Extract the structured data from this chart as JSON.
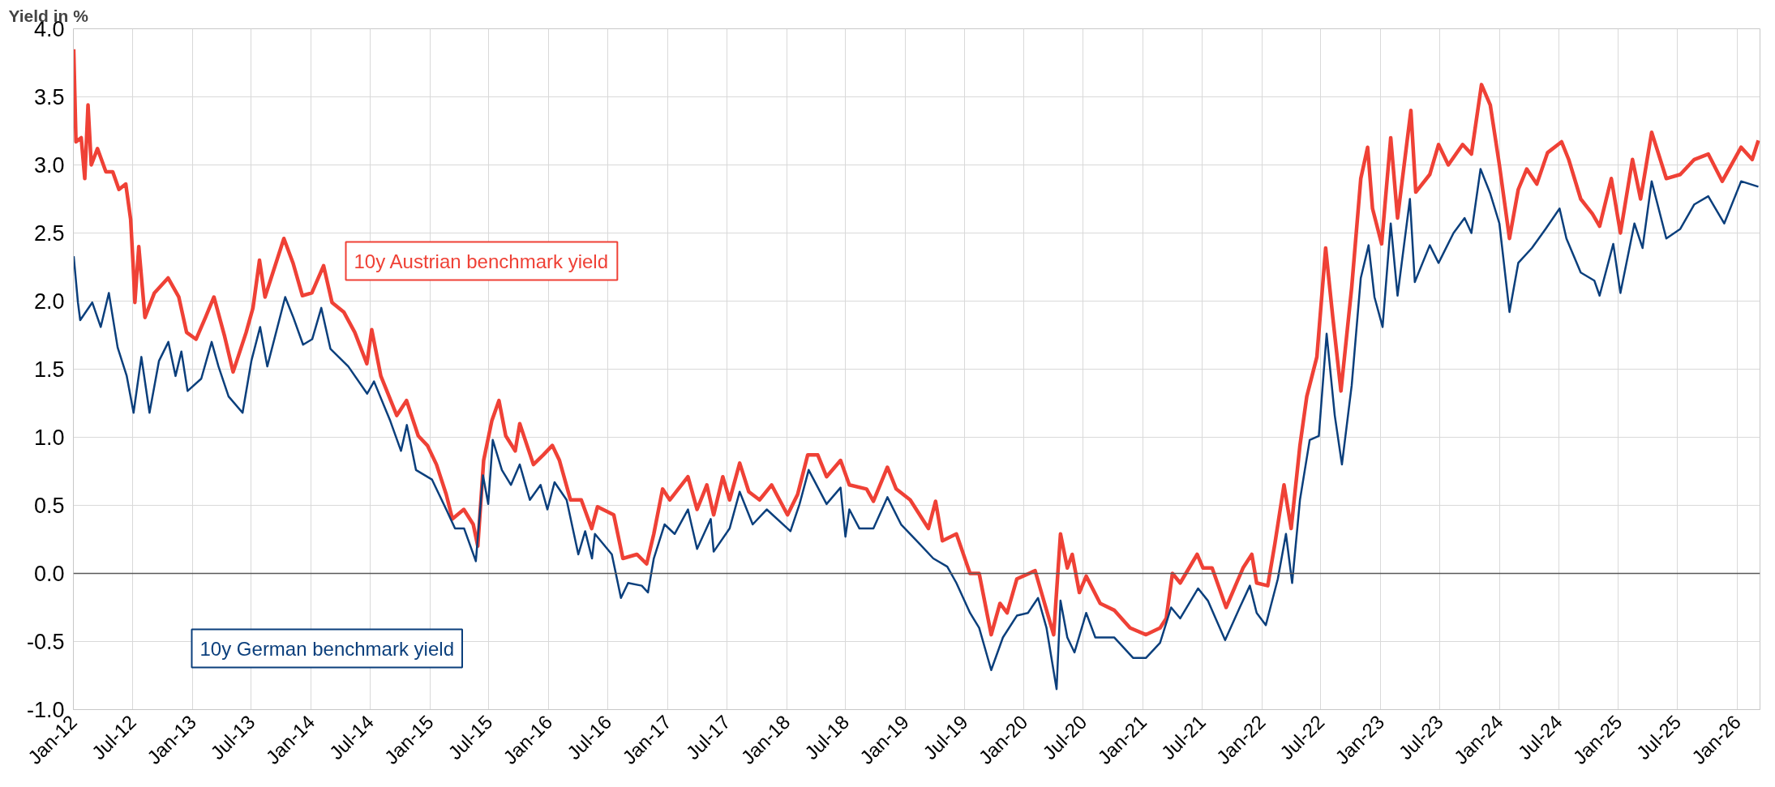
{
  "chart_data": {
    "type": "line",
    "ylabel": "Yield in %",
    "xlim": [
      "2012-01-01",
      "2026-03-12"
    ],
    "ylim": [
      -1.0,
      4.0
    ],
    "yticks": [
      {
        "value": -1,
        "label": "-1.0"
      },
      {
        "value": -0.5,
        "label": "-0.5"
      },
      {
        "value": 0,
        "label": "0.0"
      },
      {
        "value": 0.5,
        "label": "0.5"
      },
      {
        "value": 1,
        "label": "1.0"
      },
      {
        "value": 1.5,
        "label": "1.5"
      },
      {
        "value": 2,
        "label": "2.0"
      },
      {
        "value": 2.5,
        "label": "2.5"
      },
      {
        "value": 3,
        "label": "3.0"
      },
      {
        "value": 3.5,
        "label": "3.5"
      },
      {
        "value": 4,
        "label": "4.0"
      }
    ],
    "xticks": [
      {
        "value": "2012-01",
        "label": "Jan-12"
      },
      {
        "value": "2012-07",
        "label": "Jul-12"
      },
      {
        "value": "2013-01",
        "label": "Jan-13"
      },
      {
        "value": "2013-07",
        "label": "Jul-13"
      },
      {
        "value": "2014-01",
        "label": "Jan-14"
      },
      {
        "value": "2014-07",
        "label": "Jul-14"
      },
      {
        "value": "2015-01",
        "label": "Jan-15"
      },
      {
        "value": "2015-07",
        "label": "Jul-15"
      },
      {
        "value": "2016-01",
        "label": "Jan-16"
      },
      {
        "value": "2016-07",
        "label": "Jul-16"
      },
      {
        "value": "2017-01",
        "label": "Jan-17"
      },
      {
        "value": "2017-07",
        "label": "Jul-17"
      },
      {
        "value": "2018-01",
        "label": "Jan-18"
      },
      {
        "value": "2018-07",
        "label": "Jul-18"
      },
      {
        "value": "2019-01",
        "label": "Jan-19"
      },
      {
        "value": "2019-07",
        "label": "Jul-19"
      },
      {
        "value": "2020-01",
        "label": "Jan-20"
      },
      {
        "value": "2020-07",
        "label": "Jul-20"
      },
      {
        "value": "2021-01",
        "label": "Jan-21"
      },
      {
        "value": "2021-07",
        "label": "Jul-21"
      },
      {
        "value": "2022-01",
        "label": "Jan-22"
      },
      {
        "value": "2022-07",
        "label": "Jul-22"
      },
      {
        "value": "2023-01",
        "label": "Jan-23"
      },
      {
        "value": "2023-07",
        "label": "Jul-23"
      },
      {
        "value": "2024-01",
        "label": "Jan-24"
      },
      {
        "value": "2024-07",
        "label": "Jul-24"
      },
      {
        "value": "2025-01",
        "label": "Jan-25"
      },
      {
        "value": "2025-07",
        "label": "Jul-25"
      },
      {
        "value": "2026-01",
        "label": "Jan-26"
      }
    ],
    "grid": true,
    "marker": "none",
    "line_style": "solid",
    "ref_lines": [
      {
        "axis": "y",
        "value": 0,
        "label": null,
        "color": "#595959"
      }
    ],
    "series": [
      {
        "name": "10y Austrian benchmark yield",
        "color": "#ef4136",
        "x": [
          "2012-01-02",
          "2012-01-09",
          "2012-01-25",
          "2012-02-05",
          "2012-02-15",
          "2012-02-25",
          "2012-03-15",
          "2012-04-10",
          "2012-05-01",
          "2012-05-20",
          "2012-06-10",
          "2012-06-25",
          "2012-07-03",
          "2012-07-08",
          "2012-07-20",
          "2012-08-08",
          "2012-09-06",
          "2012-10-18",
          "2012-11-20",
          "2012-12-14",
          "2013-01-12",
          "2013-02-10",
          "2013-03-08",
          "2013-04-10",
          "2013-05-06",
          "2013-06-15",
          "2013-07-06",
          "2013-07-26",
          "2013-08-12",
          "2013-10-09",
          "2013-11-06",
          "2013-12-05",
          "2014-01-03",
          "2014-02-08",
          "2014-03-06",
          "2014-04-11",
          "2014-05-15",
          "2014-06-21",
          "2014-07-06",
          "2014-08-03",
          "2014-09-21",
          "2014-10-21",
          "2014-11-26",
          "2014-12-24",
          "2015-01-21",
          "2015-02-20",
          "2015-03-11",
          "2015-04-15",
          "2015-05-14",
          "2015-05-28",
          "2015-06-15",
          "2015-07-10",
          "2015-08-01",
          "2015-08-22",
          "2015-09-20",
          "2015-10-04",
          "2015-11-15",
          "2015-12-15",
          "2016-01-12",
          "2016-02-03",
          "2016-03-08",
          "2016-04-10",
          "2016-05-12",
          "2016-05-30",
          "2016-07-19",
          "2016-08-16",
          "2016-09-28",
          "2016-10-28",
          "2016-11-19",
          "2016-12-16",
          "2017-01-07",
          "2017-03-04",
          "2017-04-01",
          "2017-05-01",
          "2017-05-22",
          "2017-06-19",
          "2017-07-10",
          "2017-08-10",
          "2017-09-07",
          "2017-10-10",
          "2017-11-16",
          "2018-01-04",
          "2018-02-04",
          "2018-03-07",
          "2018-04-07",
          "2018-05-04",
          "2018-06-16",
          "2018-07-13",
          "2018-09-04",
          "2018-09-25",
          "2018-11-07",
          "2018-12-04",
          "2019-01-16",
          "2019-03-13",
          "2019-04-04",
          "2019-04-25",
          "2019-06-07",
          "2019-07-19",
          "2019-08-16",
          "2019-09-22",
          "2019-10-19",
          "2019-11-10",
          "2019-12-10",
          "2020-02-04",
          "2020-04-01",
          "2020-04-22",
          "2020-05-13",
          "2020-05-28",
          "2020-06-19",
          "2020-07-10",
          "2020-08-22",
          "2020-10-04",
          "2020-11-22",
          "2021-01-10",
          "2021-02-22",
          "2021-03-13",
          "2021-04-01",
          "2021-04-25",
          "2021-06-16",
          "2021-07-04",
          "2021-08-01",
          "2021-09-13",
          "2021-11-04",
          "2021-12-01",
          "2021-12-16",
          "2022-01-19",
          "2022-02-10",
          "2022-03-10",
          "2022-04-01",
          "2022-04-28",
          "2022-05-19",
          "2022-06-19",
          "2022-07-16",
          "2022-08-07",
          "2022-09-01",
          "2022-10-04",
          "2022-11-01",
          "2022-11-22",
          "2022-12-07",
          "2023-01-04",
          "2023-02-01",
          "2023-02-22",
          "2023-04-04",
          "2023-04-19",
          "2023-06-01",
          "2023-06-28",
          "2023-07-28",
          "2023-09-10",
          "2023-10-07",
          "2023-11-07",
          "2023-12-04",
          "2024-01-01",
          "2024-02-01",
          "2024-02-28",
          "2024-03-25",
          "2024-04-25",
          "2024-05-28",
          "2024-07-10",
          "2024-08-01",
          "2024-09-07",
          "2024-10-13",
          "2024-11-04",
          "2024-12-10",
          "2025-01-07",
          "2025-02-13",
          "2025-03-10",
          "2025-04-13",
          "2025-05-28",
          "2025-07-10",
          "2025-08-22",
          "2025-10-04",
          "2025-11-16",
          "2026-01-13",
          "2026-02-16",
          "2026-03-07"
        ],
        "values": [
          3.85,
          3.17,
          3.2,
          2.9,
          3.44,
          3.0,
          3.12,
          2.95,
          2.95,
          2.82,
          2.86,
          2.6,
          2.25,
          1.99,
          2.4,
          1.88,
          2.06,
          2.17,
          2.03,
          1.77,
          1.72,
          1.88,
          2.03,
          1.74,
          1.48,
          1.77,
          1.95,
          2.3,
          2.03,
          2.46,
          2.28,
          2.04,
          2.06,
          2.26,
          1.99,
          1.92,
          1.77,
          1.54,
          1.79,
          1.45,
          1.16,
          1.27,
          1.01,
          0.94,
          0.8,
          0.58,
          0.4,
          0.47,
          0.36,
          0.2,
          0.83,
          1.12,
          1.27,
          1.01,
          0.9,
          1.1,
          0.8,
          0.87,
          0.94,
          0.83,
          0.54,
          0.54,
          0.33,
          0.49,
          0.43,
          0.11,
          0.14,
          0.07,
          0.29,
          0.62,
          0.54,
          0.71,
          0.47,
          0.65,
          0.43,
          0.71,
          0.54,
          0.81,
          0.6,
          0.54,
          0.65,
          0.43,
          0.58,
          0.87,
          0.87,
          0.71,
          0.83,
          0.65,
          0.62,
          0.53,
          0.78,
          0.62,
          0.54,
          0.33,
          0.53,
          0.24,
          0.29,
          0.0,
          0.0,
          -0.45,
          -0.22,
          -0.29,
          -0.04,
          0.02,
          -0.45,
          0.29,
          0.04,
          0.14,
          -0.14,
          -0.02,
          -0.22,
          -0.27,
          -0.4,
          -0.45,
          -0.4,
          -0.33,
          0.0,
          -0.07,
          0.14,
          0.04,
          0.04,
          -0.25,
          0.04,
          0.14,
          -0.07,
          -0.09,
          0.22,
          0.65,
          0.33,
          0.94,
          1.3,
          1.59,
          2.39,
          1.88,
          1.34,
          2.1,
          2.9,
          3.13,
          2.68,
          2.42,
          3.2,
          2.61,
          3.4,
          2.8,
          2.93,
          3.15,
          3.0,
          3.15,
          3.08,
          3.59,
          3.44,
          3.0,
          2.46,
          2.82,
          2.97,
          2.86,
          3.09,
          3.17,
          3.04,
          2.75,
          2.64,
          2.55,
          2.9,
          2.5,
          3.04,
          2.75,
          3.24,
          2.9,
          2.93,
          3.04,
          3.08,
          2.88,
          3.13,
          3.04,
          3.18
        ]
      },
      {
        "name": "10y German benchmark yield",
        "color": "#0b3f7c",
        "x": [
          "2012-01-02",
          "2012-01-15",
          "2012-01-22",
          "2012-02-28",
          "2012-03-25",
          "2012-04-19",
          "2012-05-16",
          "2012-06-13",
          "2012-07-04",
          "2012-07-28",
          "2012-08-22",
          "2012-09-20",
          "2012-10-19",
          "2012-11-10",
          "2012-11-28",
          "2012-12-17",
          "2013-01-28",
          "2013-03-01",
          "2013-03-22",
          "2013-04-22",
          "2013-06-04",
          "2013-07-01",
          "2013-07-28",
          "2013-08-19",
          "2013-10-13",
          "2013-11-07",
          "2013-12-07",
          "2014-01-04",
          "2014-02-01",
          "2014-03-01",
          "2014-04-25",
          "2014-06-22",
          "2014-07-13",
          "2014-09-01",
          "2014-10-04",
          "2014-10-22",
          "2014-11-19",
          "2015-01-07",
          "2015-02-20",
          "2015-03-19",
          "2015-04-16",
          "2015-05-22",
          "2015-06-13",
          "2015-06-29",
          "2015-07-13",
          "2015-08-10",
          "2015-09-07",
          "2015-10-04",
          "2015-11-04",
          "2015-12-07",
          "2015-12-28",
          "2016-01-19",
          "2016-02-25",
          "2016-04-01",
          "2016-04-22",
          "2016-05-13",
          "2016-05-22",
          "2016-07-13",
          "2016-08-10",
          "2016-09-01",
          "2016-10-13",
          "2016-11-01",
          "2016-11-19",
          "2016-12-22",
          "2017-01-22",
          "2017-03-04",
          "2017-04-01",
          "2017-05-13",
          "2017-05-22",
          "2017-07-10",
          "2017-08-10",
          "2017-09-19",
          "2017-11-01",
          "2018-01-13",
          "2018-02-10",
          "2018-03-10",
          "2018-05-04",
          "2018-06-16",
          "2018-07-01",
          "2018-07-13",
          "2018-08-13",
          "2018-09-25",
          "2018-11-07",
          "2018-12-19",
          "2019-02-13",
          "2019-03-28",
          "2019-05-10",
          "2019-06-07",
          "2019-07-19",
          "2019-08-16",
          "2019-09-22",
          "2019-10-28",
          "2019-12-10",
          "2020-01-13",
          "2020-02-13",
          "2020-03-10",
          "2020-04-10",
          "2020-04-22",
          "2020-05-13",
          "2020-06-04",
          "2020-07-10",
          "2020-08-07",
          "2020-10-04",
          "2020-12-01",
          "2021-01-10",
          "2021-02-22",
          "2021-03-28",
          "2021-04-25",
          "2021-06-19",
          "2021-07-19",
          "2021-09-10",
          "2021-10-25",
          "2021-11-25",
          "2021-12-16",
          "2022-01-13",
          "2022-02-19",
          "2022-03-16",
          "2022-04-04",
          "2022-04-28",
          "2022-05-28",
          "2022-06-25",
          "2022-07-19",
          "2022-08-13",
          "2022-09-04",
          "2022-10-04",
          "2022-11-01",
          "2022-11-25",
          "2022-12-13",
          "2023-01-07",
          "2023-02-01",
          "2023-02-22",
          "2023-04-01",
          "2023-04-16",
          "2023-06-01",
          "2023-06-28",
          "2023-08-13",
          "2023-09-16",
          "2023-10-07",
          "2023-11-04",
          "2023-12-04",
          "2024-01-01",
          "2024-02-01",
          "2024-02-28",
          "2024-04-10",
          "2024-05-22",
          "2024-07-04",
          "2024-07-25",
          "2024-09-07",
          "2024-10-19",
          "2024-11-04",
          "2024-12-16",
          "2025-01-07",
          "2025-02-19",
          "2025-03-16",
          "2025-04-13",
          "2025-05-28",
          "2025-07-10",
          "2025-08-22",
          "2025-10-04",
          "2025-11-22",
          "2026-01-13",
          "2026-03-07"
        ],
        "values": [
          2.33,
          1.99,
          1.86,
          1.99,
          1.81,
          2.06,
          1.66,
          1.45,
          1.18,
          1.59,
          1.18,
          1.56,
          1.7,
          1.45,
          1.63,
          1.34,
          1.43,
          1.7,
          1.52,
          1.3,
          1.18,
          1.56,
          1.81,
          1.52,
          2.03,
          1.88,
          1.68,
          1.72,
          1.95,
          1.65,
          1.52,
          1.32,
          1.41,
          1.12,
          0.9,
          1.09,
          0.76,
          0.69,
          0.47,
          0.33,
          0.33,
          0.09,
          0.72,
          0.51,
          0.98,
          0.76,
          0.65,
          0.8,
          0.54,
          0.65,
          0.47,
          0.67,
          0.54,
          0.14,
          0.31,
          0.11,
          0.29,
          0.14,
          -0.18,
          -0.07,
          -0.09,
          -0.14,
          0.11,
          0.36,
          0.29,
          0.47,
          0.18,
          0.4,
          0.16,
          0.33,
          0.6,
          0.36,
          0.47,
          0.31,
          0.51,
          0.76,
          0.51,
          0.63,
          0.27,
          0.47,
          0.33,
          0.33,
          0.56,
          0.36,
          0.22,
          0.11,
          0.05,
          -0.07,
          -0.29,
          -0.4,
          -0.71,
          -0.47,
          -0.31,
          -0.29,
          -0.18,
          -0.4,
          -0.85,
          -0.2,
          -0.47,
          -0.58,
          -0.29,
          -0.47,
          -0.47,
          -0.62,
          -0.62,
          -0.51,
          -0.25,
          -0.33,
          -0.11,
          -0.2,
          -0.49,
          -0.25,
          -0.09,
          -0.29,
          -0.38,
          -0.04,
          0.29,
          -0.07,
          0.54,
          0.98,
          1.01,
          1.76,
          1.16,
          0.8,
          1.38,
          2.17,
          2.41,
          2.03,
          1.81,
          2.57,
          2.04,
          2.75,
          2.14,
          2.41,
          2.28,
          2.5,
          2.61,
          2.5,
          2.97,
          2.79,
          2.57,
          1.92,
          2.28,
          2.39,
          2.53,
          2.68,
          2.46,
          2.21,
          2.15,
          2.04,
          2.42,
          2.06,
          2.57,
          2.39,
          2.88,
          2.46,
          2.53,
          2.71,
          2.77,
          2.57,
          2.88,
          2.84
        ]
      }
    ]
  }
}
